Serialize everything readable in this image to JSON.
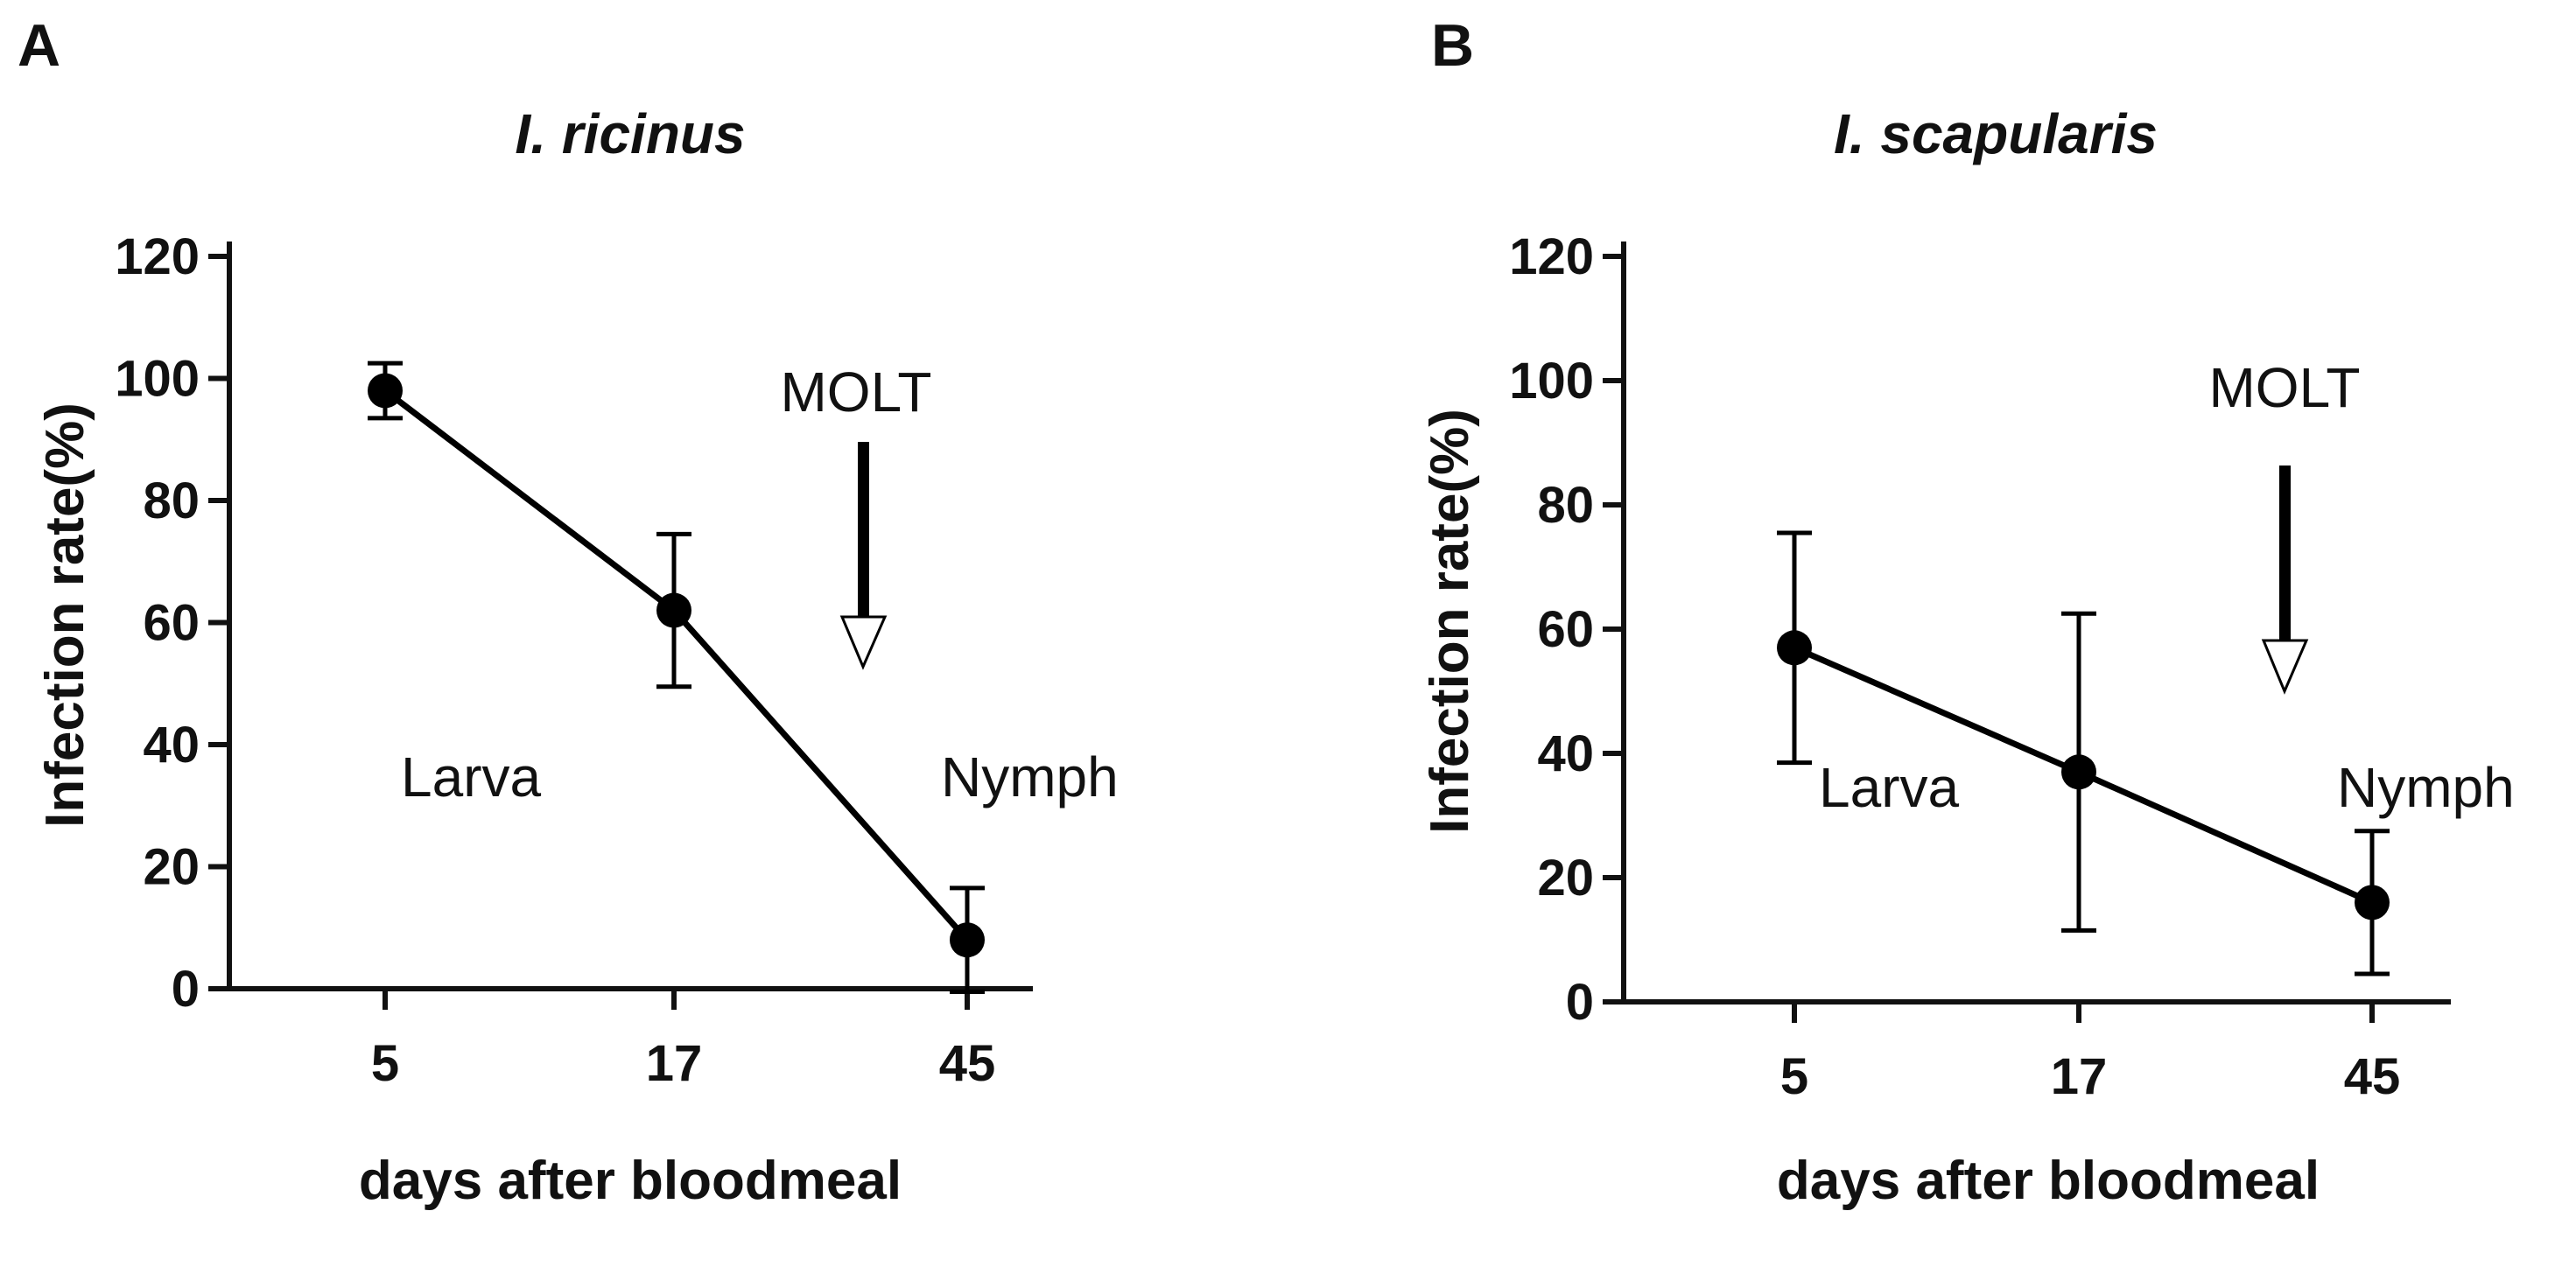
{
  "chart_data": [
    {
      "type": "line",
      "panel_label": "A",
      "title": "I. ricinus",
      "xlabel": "days after bloodmeal",
      "ylabel": "Infection rate(%)",
      "categories": [
        "5",
        "17",
        "45"
      ],
      "values": [
        98,
        62,
        8
      ],
      "error": [
        4.5,
        12.5,
        8.5
      ],
      "ylim": [
        0,
        120
      ],
      "yticks": [
        "0",
        "20",
        "40",
        "60",
        "80",
        "100",
        "120"
      ],
      "annotations": {
        "molt": "MOLT",
        "larva": "Larva",
        "nymph": "Nymph"
      }
    },
    {
      "type": "line",
      "panel_label": "B",
      "title": "I. scapularis",
      "xlabel": "days after bloodmeal",
      "ylabel": "Infection rate(%)",
      "categories": [
        "5",
        "17",
        "45"
      ],
      "values": [
        57,
        37,
        16
      ],
      "error": [
        18.5,
        25.5,
        11.5
      ],
      "ylim": [
        0,
        120
      ],
      "yticks": [
        "0",
        "20",
        "40",
        "60",
        "80",
        "100",
        "120"
      ],
      "annotations": {
        "molt": "MOLT",
        "larva": "Larva",
        "nymph": "Nymph"
      }
    }
  ]
}
